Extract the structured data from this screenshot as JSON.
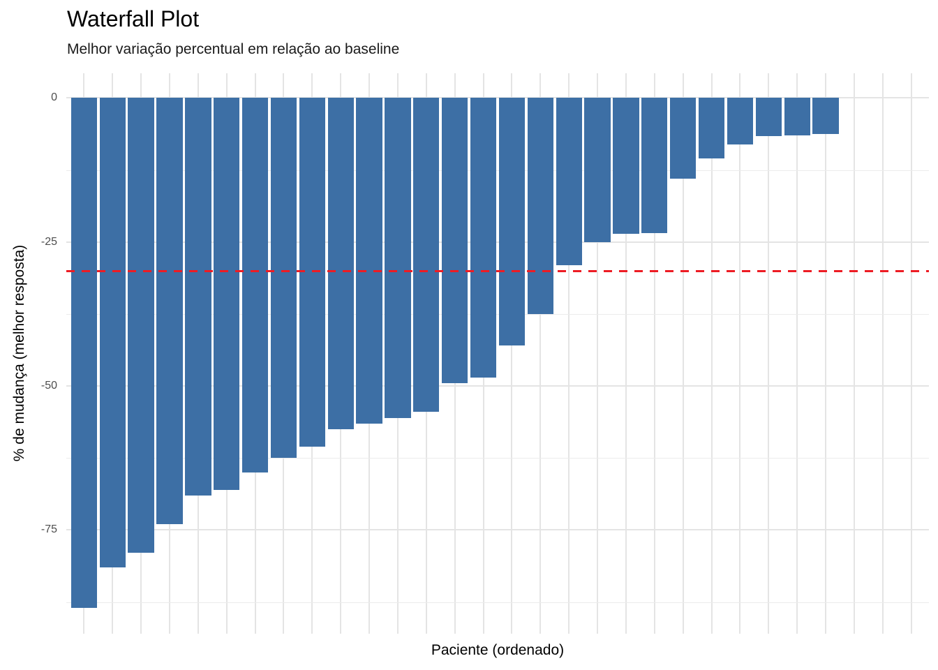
{
  "chart_data": {
    "type": "bar",
    "title": "Waterfall Plot",
    "subtitle": "Melhor variação percentual em relação ao baseline",
    "xlabel": "Paciente (ordenado)",
    "ylabel": "% de mudança (melhor resposta)",
    "n_patients": 27,
    "values": [
      -88.5,
      -81.5,
      -79,
      -74,
      -69,
      -68,
      -65,
      -62.5,
      -60.5,
      -57.5,
      -56.5,
      -55.5,
      -54.5,
      -49.5,
      -48.5,
      -43,
      -37.5,
      -29,
      -25,
      -23.6,
      -23.4,
      -14,
      -10.5,
      -8,
      -6.6,
      -6.5,
      -6.3
    ],
    "ylim": [
      -93,
      4.3
    ],
    "yticks": [
      0,
      -25,
      -50,
      -75
    ],
    "ytick_labels": [
      "0",
      "-25",
      "-50",
      "-75"
    ],
    "yminor": [
      -12.5,
      -37.5,
      -62.5,
      -87.5
    ],
    "x_gridline_count": 30,
    "reference_line": {
      "y": -30,
      "style": "dashed",
      "color": "#ED1C24"
    },
    "bar_color": "#3D6FA5",
    "grid": "on",
    "legend": "none",
    "x_tick_labels": "none"
  },
  "style": {
    "background": "#ffffff",
    "grid_major_color": "#e4e4e4",
    "grid_minor_color": "#ececec",
    "tick_label_color": "#4d4d4d",
    "text_color": "#000000"
  }
}
